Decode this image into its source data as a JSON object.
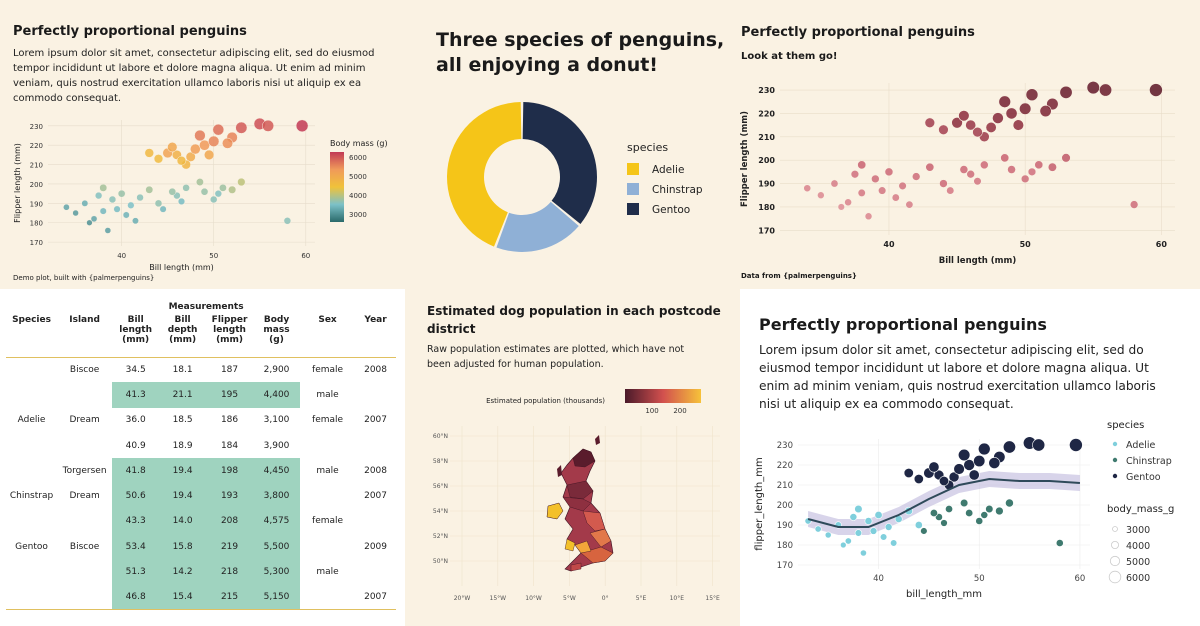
{
  "p1": {
    "title": "Perfectly proportional penguins",
    "text": "Lorem ipsum dolor sit amet, consectetur adipiscing elit, sed do eiusmod tempor incididunt ut labore et dolore magna aliqua. Ut enim ad minim veniam, quis nostrud exercitation ullamco laboris nisi ut aliquip ex ea commodo consequat.",
    "caption": "Demo plot, built with {palmerpenguins}",
    "legend_title": "Body mass (g)",
    "legend_ticks": [
      "6000",
      "5000",
      "4000",
      "3000"
    ]
  },
  "p2": {
    "title_line1": "Three species of penguins,",
    "title_line2": "all enjoying a donut!",
    "legend_title": "species"
  },
  "p3": {
    "title": "Perfectly proportional penguins",
    "subtitle": "Look at them go!",
    "caption": "Data from {palmerpenguins}"
  },
  "p4": {
    "group_header": "Measurements",
    "headers": [
      "Species",
      "Island",
      "Bill length (mm)",
      "Bill depth (mm)",
      "Flipper length (mm)",
      "Body mass (g)",
      "Sex",
      "Year"
    ],
    "rows": [
      {
        "species": "",
        "island": "Biscoe",
        "bl": "34.5",
        "bd": "18.1",
        "fl": "187",
        "bm": "2,900",
        "sex": "female",
        "year": "2008",
        "hl": false
      },
      {
        "species": "",
        "island": "",
        "bl": "41.3",
        "bd": "21.1",
        "fl": "195",
        "bm": "4,400",
        "sex": "male",
        "year": "",
        "hl": true
      },
      {
        "species": "Adelie",
        "island": "Dream",
        "bl": "36.0",
        "bd": "18.5",
        "fl": "186",
        "bm": "3,100",
        "sex": "female",
        "year": "2007",
        "hl": false
      },
      {
        "species": "",
        "island": "",
        "bl": "40.9",
        "bd": "18.9",
        "fl": "184",
        "bm": "3,900",
        "sex": "",
        "year": "",
        "hl": false
      },
      {
        "species": "",
        "island": "Torgersen",
        "bl": "41.8",
        "bd": "19.4",
        "fl": "198",
        "bm": "4,450",
        "sex": "male",
        "year": "2008",
        "hl": true
      },
      {
        "species": "Chinstrap",
        "island": "Dream",
        "bl": "50.6",
        "bd": "19.4",
        "fl": "193",
        "bm": "3,800",
        "sex": "",
        "year": "2007",
        "hl": true
      },
      {
        "species": "",
        "island": "",
        "bl": "43.3",
        "bd": "14.0",
        "fl": "208",
        "bm": "4,575",
        "sex": "female",
        "year": "",
        "hl": true
      },
      {
        "species": "Gentoo",
        "island": "Biscoe",
        "bl": "53.4",
        "bd": "15.8",
        "fl": "219",
        "bm": "5,500",
        "sex": "",
        "year": "2009",
        "hl": true
      },
      {
        "species": "",
        "island": "",
        "bl": "51.3",
        "bd": "14.2",
        "fl": "218",
        "bm": "5,300",
        "sex": "male",
        "year": "",
        "hl": true
      },
      {
        "species": "",
        "island": "",
        "bl": "46.8",
        "bd": "15.4",
        "fl": "215",
        "bm": "5,150",
        "sex": "",
        "year": "2007",
        "hl": true
      }
    ]
  },
  "p5": {
    "title_line1": "Estimated dog population in each postcode",
    "title_line2": "district",
    "subtitle_line1": "Raw population estimates are plotted, which have not",
    "subtitle_line2": "been adjusted for human population.",
    "legend_title": "Estimated population (thousands)",
    "legend_ticks": [
      "100",
      "200"
    ],
    "lat_ticks": [
      "60°N",
      "58°N",
      "56°N",
      "54°N",
      "52°N",
      "50°N"
    ],
    "lon_ticks": [
      "20°W",
      "15°W",
      "10°W",
      "5°W",
      "0°",
      "5°E",
      "10°E",
      "15°E"
    ]
  },
  "p6": {
    "title": "Perfectly proportional penguins",
    "text_lines": [
      "Lorem ipsum dolor sit amet, consectetur adipiscing elit, sed do",
      "eiusmod tempor incididunt ut labore et dolore magna aliqua. Ut",
      "enim ad minim veniam, quis nostrud exercitation ullamco laboris",
      "nisi ut aliquip ex ea commodo consequat."
    ],
    "legend_species_title": "species",
    "legend_mass_title": "body_mass_g",
    "mass_levels": [
      "3000",
      "4000",
      "5000",
      "6000"
    ]
  },
  "colors": {
    "adelie_donut": "#f5c518",
    "chinstrap_donut": "#8fb0d6",
    "gentoo_donut": "#1f2d4a",
    "table_highlight": "#9fd3bf",
    "adelie_p6": "#7fcfdc",
    "chinstrap_p6": "#3f7a6f",
    "gentoo_p6": "#1f2745"
  },
  "chart_data": [
    {
      "id": "p1_scatter",
      "type": "scatter",
      "title": "Perfectly proportional penguins",
      "xlabel": "Bill length (mm)",
      "ylabel": "Flipper length (mm)",
      "xlim": [
        32,
        61
      ],
      "ylim": [
        168,
        233
      ],
      "x_ticks": [
        40,
        50,
        60
      ],
      "y_ticks": [
        170,
        180,
        190,
        200,
        210,
        220,
        230
      ],
      "color_by": "Body mass (g)",
      "points": [
        [
          38,
          186,
          3500
        ],
        [
          36,
          190,
          3400
        ],
        [
          39,
          192,
          3700
        ],
        [
          37,
          182,
          3300
        ],
        [
          40,
          195,
          3800
        ],
        [
          41,
          189,
          3600
        ],
        [
          35,
          185,
          3200
        ],
        [
          38,
          198,
          3900
        ],
        [
          42,
          193,
          3700
        ],
        [
          36.5,
          180,
          3100
        ],
        [
          39.5,
          187,
          3550
        ],
        [
          37.5,
          194,
          3650
        ],
        [
          40.5,
          184,
          3450
        ],
        [
          34,
          188,
          3300
        ],
        [
          43,
          197,
          3900
        ],
        [
          41.5,
          181,
          3400
        ],
        [
          38.5,
          176,
          3250
        ],
        [
          44,
          190,
          3750
        ],
        [
          46,
          194,
          3700
        ],
        [
          45.5,
          196,
          3800
        ],
        [
          47,
          198,
          3750
        ],
        [
          49,
          196,
          3800
        ],
        [
          50,
          192,
          3700
        ],
        [
          51,
          198,
          3850
        ],
        [
          48.5,
          201,
          3900
        ],
        [
          52,
          197,
          4000
        ],
        [
          53,
          201,
          4100
        ],
        [
          50.5,
          195,
          3650
        ],
        [
          46.5,
          191,
          3550
        ],
        [
          44.5,
          187,
          3500
        ],
        [
          47.5,
          214,
          5000
        ],
        [
          46,
          215,
          4900
        ],
        [
          45,
          216,
          5200
        ],
        [
          48,
          218,
          5300
        ],
        [
          49,
          220,
          5400
        ],
        [
          50,
          222,
          5600
        ],
        [
          47,
          210,
          4800
        ],
        [
          46.5,
          212,
          4700
        ],
        [
          44,
          213,
          4650
        ],
        [
          43,
          216,
          4700
        ],
        [
          45.5,
          219,
          5100
        ],
        [
          48.5,
          225,
          5700
        ],
        [
          50.5,
          228,
          5800
        ],
        [
          52,
          224,
          5600
        ],
        [
          53,
          229,
          6000
        ],
        [
          55,
          231,
          6100
        ],
        [
          55.9,
          230,
          6000
        ],
        [
          59.6,
          230,
          6300
        ],
        [
          51.5,
          221,
          5500
        ],
        [
          49.5,
          215,
          5100
        ],
        [
          58,
          181,
          3700
        ]
      ]
    },
    {
      "id": "p2_donut",
      "type": "pie",
      "title": "Three species of penguins, all enjoying a donut!",
      "categories": [
        "Adelie",
        "Chinstrap",
        "Gentoo"
      ],
      "values": [
        152,
        68,
        124
      ],
      "legend_title": "species"
    },
    {
      "id": "p3_scatter",
      "type": "scatter",
      "title": "Perfectly proportional penguins",
      "subtitle": "Look at them go!",
      "xlabel": "Bill length (mm)",
      "ylabel": "Flipper length (mm)",
      "xlim": [
        32,
        61
      ],
      "ylim": [
        168,
        233
      ],
      "x_ticks": [
        40,
        50,
        60
      ],
      "y_ticks": [
        170,
        180,
        190,
        200,
        210,
        220,
        230
      ],
      "points": [
        [
          38,
          186,
          3500
        ],
        [
          36,
          190,
          3400
        ],
        [
          39,
          192,
          3700
        ],
        [
          37,
          182,
          3300
        ],
        [
          40,
          195,
          3800
        ],
        [
          41,
          189,
          3600
        ],
        [
          35,
          185,
          3200
        ],
        [
          38,
          198,
          3900
        ],
        [
          42,
          193,
          3700
        ],
        [
          36.5,
          180,
          3100
        ],
        [
          39.5,
          187,
          3550
        ],
        [
          37.5,
          194,
          3650
        ],
        [
          40.5,
          184,
          3450
        ],
        [
          34,
          188,
          3300
        ],
        [
          43,
          197,
          3900
        ],
        [
          41.5,
          181,
          3400
        ],
        [
          38.5,
          176,
          3250
        ],
        [
          44,
          190,
          3750
        ],
        [
          46,
          194,
          3700
        ],
        [
          45.5,
          196,
          3800
        ],
        [
          47,
          198,
          3750
        ],
        [
          49,
          196,
          3800
        ],
        [
          50,
          192,
          3700
        ],
        [
          51,
          198,
          3850
        ],
        [
          48.5,
          201,
          3900
        ],
        [
          52,
          197,
          4000
        ],
        [
          53,
          201,
          4100
        ],
        [
          50.5,
          195,
          3650
        ],
        [
          46.5,
          191,
          3550
        ],
        [
          44.5,
          187,
          3500
        ],
        [
          47.5,
          214,
          5000
        ],
        [
          46,
          215,
          4900
        ],
        [
          45,
          216,
          5200
        ],
        [
          48,
          218,
          5300
        ],
        [
          49,
          220,
          5400
        ],
        [
          50,
          222,
          5600
        ],
        [
          47,
          210,
          4800
        ],
        [
          46.5,
          212,
          4700
        ],
        [
          44,
          213,
          4650
        ],
        [
          43,
          216,
          4700
        ],
        [
          45.5,
          219,
          5100
        ],
        [
          48.5,
          225,
          5700
        ],
        [
          50.5,
          228,
          5800
        ],
        [
          52,
          224,
          5600
        ],
        [
          53,
          229,
          6000
        ],
        [
          55,
          231,
          6100
        ],
        [
          55.9,
          230,
          6000
        ],
        [
          59.6,
          230,
          6300
        ],
        [
          51.5,
          221,
          5500
        ],
        [
          49.5,
          215,
          5100
        ],
        [
          58,
          181,
          3700
        ]
      ]
    },
    {
      "id": "p5_map",
      "type": "heatmap",
      "title": "Estimated dog population in each postcode district",
      "legend_title": "Estimated population (thousands)",
      "color_range": [
        0,
        260
      ]
    },
    {
      "id": "p6_scatter",
      "type": "scatter",
      "xlabel": "bill_length_mm",
      "ylabel": "flipper_length_mm",
      "xlim": [
        32,
        61
      ],
      "ylim": [
        168,
        233
      ],
      "x_ticks": [
        40,
        50,
        60
      ],
      "y_ticks": [
        170,
        180,
        190,
        200,
        210,
        220,
        230
      ],
      "legend_title": "species",
      "categories": [
        "Adelie",
        "Chinstrap",
        "Gentoo"
      ],
      "series": [
        {
          "name": "Adelie",
          "points": [
            [
              38,
              186,
              3500
            ],
            [
              36,
              190,
              3400
            ],
            [
              39,
              192,
              3700
            ],
            [
              37,
              182,
              3300
            ],
            [
              40,
              195,
              3800
            ],
            [
              41,
              189,
              3600
            ],
            [
              35,
              185,
              3200
            ],
            [
              38,
              198,
              3900
            ],
            [
              42,
              193,
              3700
            ],
            [
              36.5,
              180,
              3100
            ],
            [
              39.5,
              187,
              3550
            ],
            [
              37.5,
              194,
              3650
            ],
            [
              40.5,
              184,
              3450
            ],
            [
              34,
              188,
              3300
            ],
            [
              41.5,
              181,
              3400
            ],
            [
              38.5,
              176,
              3250
            ],
            [
              33,
              192,
              3300
            ],
            [
              44,
              190,
              3750
            ],
            [
              43,
              197,
              3900
            ]
          ]
        },
        {
          "name": "Chinstrap",
          "points": [
            [
              46,
              194,
              3700
            ],
            [
              45.5,
              196,
              3800
            ],
            [
              47,
              198,
              3750
            ],
            [
              49,
              196,
              3800
            ],
            [
              50,
              192,
              3700
            ],
            [
              51,
              198,
              3850
            ],
            [
              48.5,
              201,
              3900
            ],
            [
              52,
              197,
              4000
            ],
            [
              53,
              201,
              4100
            ],
            [
              50.5,
              195,
              3650
            ],
            [
              46.5,
              191,
              3550
            ],
            [
              44.5,
              187,
              3500
            ],
            [
              58,
              181,
              3700
            ]
          ]
        },
        {
          "name": "Gentoo",
          "points": [
            [
              47.5,
              214,
              5000
            ],
            [
              46,
              215,
              4900
            ],
            [
              45,
              216,
              5200
            ],
            [
              48,
              218,
              5300
            ],
            [
              49,
              220,
              5400
            ],
            [
              50,
              222,
              5600
            ],
            [
              47,
              210,
              4800
            ],
            [
              46.5,
              212,
              4700
            ],
            [
              44,
              213,
              4650
            ],
            [
              43,
              216,
              4700
            ],
            [
              45.5,
              219,
              5100
            ],
            [
              48.5,
              225,
              5700
            ],
            [
              50.5,
              228,
              5800
            ],
            [
              52,
              224,
              5600
            ],
            [
              53,
              229,
              6000
            ],
            [
              55,
              231,
              6100
            ],
            [
              55.9,
              230,
              6000
            ],
            [
              59.6,
              230,
              6300
            ],
            [
              51.5,
              221,
              5500
            ],
            [
              49.5,
              215,
              5100
            ]
          ]
        }
      ],
      "smooth": [
        [
          33,
          193
        ],
        [
          36,
          189
        ],
        [
          39,
          189
        ],
        [
          42,
          195
        ],
        [
          45,
          203
        ],
        [
          48,
          210
        ],
        [
          51,
          213
        ],
        [
          54,
          212
        ],
        [
          57,
          212
        ],
        [
          60,
          211
        ]
      ]
    }
  ]
}
